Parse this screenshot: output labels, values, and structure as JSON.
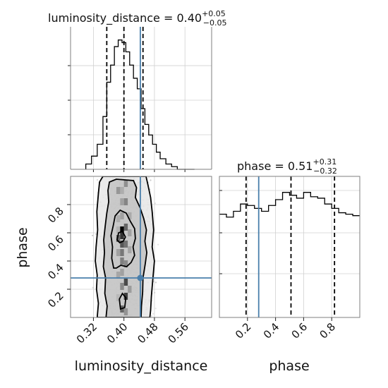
{
  "chart_data": {
    "type": "corner",
    "parameters": [
      "luminosity_distance",
      "phase"
    ],
    "titles": [
      {
        "param": "luminosity_distance",
        "prefix": "luminosity_distance = ",
        "value": "0.40",
        "plus": "+0.05",
        "minus": "−0.05"
      },
      {
        "param": "phase",
        "prefix": "phase = ",
        "value": "0.51",
        "plus": "+0.31",
        "minus": "−0.32"
      }
    ],
    "axes": {
      "luminosity_distance": {
        "label": "luminosity_distance",
        "range": [
          0.26,
          0.63
        ],
        "ticks": [
          0.32,
          0.4,
          0.48,
          0.56
        ],
        "ticklabels": [
          "0.32",
          "0.40",
          "0.48",
          "0.56"
        ]
      },
      "phase": {
        "label": "phase",
        "range": [
          0.0,
          1.0
        ],
        "ticks": [
          0.2,
          0.4,
          0.6,
          0.8
        ],
        "ticklabels": [
          "0.2",
          "0.4",
          "0.6",
          "0.8"
        ]
      }
    },
    "truth": {
      "luminosity_distance": 0.443,
      "phase": 0.28
    },
    "quantiles": {
      "luminosity_distance": [
        0.355,
        0.4,
        0.45
      ],
      "phase": [
        0.19,
        0.51,
        0.82
      ]
    },
    "hist_luminosity_distance": {
      "edges": [
        0.3,
        0.315,
        0.33,
        0.345,
        0.355,
        0.365,
        0.375,
        0.385,
        0.395,
        0.405,
        0.415,
        0.425,
        0.435,
        0.445,
        0.455,
        0.465,
        0.475,
        0.485,
        0.495,
        0.51,
        0.525,
        0.54,
        0.555,
        0.57,
        0.585
      ],
      "counts": [
        0.04,
        0.1,
        0.19,
        0.4,
        0.66,
        0.79,
        0.93,
        0.98,
        0.96,
        0.89,
        0.79,
        0.69,
        0.61,
        0.46,
        0.34,
        0.26,
        0.19,
        0.13,
        0.08,
        0.04,
        0.02,
        0.0,
        0.0,
        0.0
      ]
    },
    "hist_phase": {
      "edges": [
        0.0,
        0.05,
        0.1,
        0.15,
        0.2,
        0.25,
        0.3,
        0.35,
        0.4,
        0.45,
        0.5,
        0.55,
        0.6,
        0.65,
        0.7,
        0.75,
        0.8,
        0.85,
        0.9,
        0.95,
        1.0
      ],
      "counts": [
        0.71,
        0.69,
        0.73,
        0.78,
        0.77,
        0.75,
        0.73,
        0.77,
        0.81,
        0.86,
        0.84,
        0.82,
        0.86,
        0.83,
        0.82,
        0.78,
        0.75,
        0.72,
        0.71,
        0.7
      ]
    },
    "contours_luminosity_distance_phase": [
      {
        "level": "outer",
        "points": [
          [
            0.33,
            0.0
          ],
          [
            0.333,
            0.1
          ],
          [
            0.328,
            0.2
          ],
          [
            0.33,
            0.3
          ],
          [
            0.325,
            0.4
          ],
          [
            0.327,
            0.5
          ],
          [
            0.331,
            0.62
          ],
          [
            0.329,
            0.75
          ],
          [
            0.333,
            0.88
          ],
          [
            0.336,
            0.96
          ],
          [
            0.345,
            1.0
          ],
          [
            0.458,
            1.0
          ],
          [
            0.463,
            0.94
          ],
          [
            0.47,
            0.85
          ],
          [
            0.474,
            0.75
          ],
          [
            0.478,
            0.62
          ],
          [
            0.474,
            0.5
          ],
          [
            0.48,
            0.4
          ],
          [
            0.476,
            0.28
          ],
          [
            0.472,
            0.15
          ],
          [
            0.47,
            0.05
          ],
          [
            0.468,
            0.0
          ]
        ]
      },
      {
        "level": "middle",
        "points": [
          [
            0.353,
            0.0
          ],
          [
            0.356,
            0.08
          ],
          [
            0.35,
            0.17
          ],
          [
            0.352,
            0.28
          ],
          [
            0.346,
            0.36
          ],
          [
            0.349,
            0.46
          ],
          [
            0.347,
            0.55
          ],
          [
            0.351,
            0.65
          ],
          [
            0.355,
            0.74
          ],
          [
            0.36,
            0.82
          ],
          [
            0.358,
            0.9
          ],
          [
            0.362,
            0.96
          ],
          [
            0.38,
            0.98
          ],
          [
            0.425,
            0.97
          ],
          [
            0.433,
            0.92
          ],
          [
            0.43,
            0.85
          ],
          [
            0.442,
            0.78
          ],
          [
            0.452,
            0.7
          ],
          [
            0.459,
            0.62
          ],
          [
            0.455,
            0.54
          ],
          [
            0.46,
            0.46
          ],
          [
            0.456,
            0.38
          ],
          [
            0.45,
            0.28
          ],
          [
            0.449,
            0.18
          ],
          [
            0.446,
            0.08
          ],
          [
            0.445,
            0.0
          ]
        ]
      },
      {
        "level": "inner",
        "points": [
          [
            0.373,
            0.35
          ],
          [
            0.368,
            0.42
          ],
          [
            0.37,
            0.5
          ],
          [
            0.366,
            0.58
          ],
          [
            0.372,
            0.65
          ],
          [
            0.377,
            0.72
          ],
          [
            0.39,
            0.76
          ],
          [
            0.406,
            0.74
          ],
          [
            0.417,
            0.68
          ],
          [
            0.428,
            0.63
          ],
          [
            0.43,
            0.56
          ],
          [
            0.424,
            0.5
          ],
          [
            0.428,
            0.44
          ],
          [
            0.419,
            0.39
          ],
          [
            0.407,
            0.36
          ],
          [
            0.392,
            0.37
          ],
          [
            0.38,
            0.35
          ]
        ]
      },
      {
        "level": "core",
        "points": [
          [
            0.382,
            0.55
          ],
          [
            0.386,
            0.6
          ],
          [
            0.396,
            0.61
          ],
          [
            0.404,
            0.57
          ],
          [
            0.398,
            0.54
          ],
          [
            0.389,
            0.53
          ]
        ]
      },
      {
        "level": "core2",
        "points": [
          [
            0.391,
            0.06
          ],
          [
            0.388,
            0.13
          ],
          [
            0.396,
            0.17
          ],
          [
            0.405,
            0.14
          ],
          [
            0.402,
            0.07
          ]
        ]
      }
    ],
    "density_cells": [
      [
        0.405,
        0.25,
        0.68
      ],
      [
        0.405,
        0.15,
        0.72
      ],
      [
        0.395,
        0.22,
        0.4
      ],
      [
        0.405,
        0.64,
        0.55
      ],
      [
        0.395,
        0.72,
        0.3
      ],
      [
        0.405,
        0.52,
        0.5
      ],
      [
        0.385,
        0.62,
        0.22
      ],
      [
        0.385,
        0.46,
        0.3
      ],
      [
        0.395,
        0.4,
        0.45
      ],
      [
        0.405,
        0.38,
        0.4
      ],
      [
        0.395,
        0.9,
        0.25
      ],
      [
        0.405,
        0.82,
        0.42
      ],
      [
        0.385,
        0.9,
        0.35
      ],
      [
        0.395,
        0.82,
        0.3
      ],
      [
        0.405,
        0.04,
        0.36
      ],
      [
        0.395,
        0.06,
        0.55
      ],
      [
        0.385,
        0.3,
        0.28
      ],
      [
        0.395,
        0.32,
        0.3
      ],
      [
        0.385,
        0.14,
        0.2
      ],
      [
        0.405,
        0.95,
        0.38
      ],
      [
        0.395,
        0.52,
        0.62
      ],
      [
        0.395,
        0.62,
        0.97
      ],
      [
        0.395,
        0.58,
        0.78
      ],
      [
        0.385,
        0.56,
        0.55
      ],
      [
        0.395,
        0.46,
        0.48
      ],
      [
        0.415,
        0.6,
        0.3
      ],
      [
        0.415,
        0.48,
        0.28
      ],
      [
        0.415,
        0.2,
        0.32
      ],
      [
        0.385,
        0.7,
        0.25
      ],
      [
        0.415,
        0.72,
        0.26
      ]
    ]
  }
}
